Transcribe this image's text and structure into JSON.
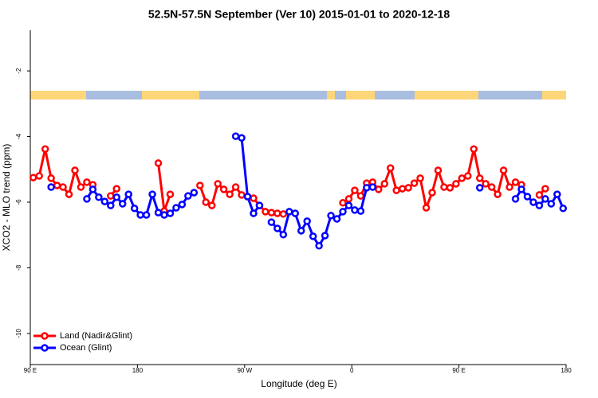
{
  "chart_data": {
    "type": "line",
    "title": "52.5N-57.5N September (Ver 10)   2015-01-01 to 2020-12-18",
    "x_label": "Longitude (deg E)",
    "y_label": "XCO2 - MLO trend (ppm)",
    "xlim": [
      90,
      540
    ],
    "ylim": [
      -10.95,
      -0.76
    ],
    "xticks": [
      {
        "value": 90,
        "label": "90 E"
      },
      180,
      {
        "value": 270,
        "label": "90 W"
      },
      {
        "value": 360,
        "label": "0"
      },
      {
        "value": 450,
        "label": "90 E"
      },
      {
        "value": 540,
        "label": "180"
      }
    ],
    "yticks": [
      -10,
      -8,
      -6,
      -4,
      -2
    ],
    "legend": "bottom-left",
    "x": [
      92.5,
      97.5,
      102.5,
      107.5,
      112.5,
      117.5,
      122.5,
      127.5,
      132.5,
      137.5,
      142.5,
      147.5,
      152.5,
      157.5,
      162.5,
      167.5,
      172.5,
      177.5,
      182.5,
      187.5,
      192.5,
      197.5,
      202.5,
      207.5,
      212.5,
      217.5,
      222.5,
      227.5,
      232.5,
      237.5,
      242.5,
      247.5,
      252.5,
      257.5,
      262.5,
      267.5,
      272.5,
      277.5,
      282.5,
      287.5,
      292.5,
      297.5,
      302.5,
      307.5,
      312.5,
      317.5,
      322.5,
      327.5,
      332.5,
      337.5,
      342.5,
      347.5,
      352.5,
      357.5,
      362.5,
      367.5,
      372.5,
      377.5,
      382.5,
      387.5,
      392.5,
      397.5,
      402.5,
      407.5,
      412.5,
      417.5,
      422.5,
      427.5,
      432.5,
      437.5,
      442.5,
      447.5,
      452.5,
      457.5,
      462.5,
      467.5,
      472.5,
      477.5,
      482.5,
      487.5,
      492.5,
      497.5,
      502.5,
      507.5,
      512.5,
      517.5,
      522.5,
      527.5,
      532.5,
      537.5
    ],
    "series": [
      {
        "name": "Land (Nadir&Glint)",
        "color": "#ff0000",
        "values": [
          -5.25,
          -5.2,
          -4.38,
          -5.27,
          -5.49,
          -5.54,
          -5.76,
          -5.03,
          -5.54,
          -5.39,
          -5.47,
          null,
          null,
          -5.81,
          -5.59,
          null,
          null,
          null,
          null,
          null,
          null,
          -4.81,
          -6.27,
          -5.76,
          null,
          null,
          null,
          null,
          -5.49,
          -6.0,
          -6.1,
          -5.44,
          -5.61,
          -5.76,
          -5.54,
          -5.78,
          -5.83,
          -5.88,
          -6.1,
          -6.29,
          -6.32,
          -6.34,
          -6.36,
          null,
          null,
          null,
          null,
          null,
          null,
          null,
          null,
          null,
          -6.02,
          -5.9,
          -5.64,
          -5.81,
          -5.42,
          -5.39,
          -5.61,
          -5.44,
          -4.96,
          -5.64,
          -5.59,
          -5.56,
          -5.42,
          -5.27,
          -6.17,
          -5.71,
          -5.03,
          -5.54,
          -5.56,
          -5.44,
          -5.27,
          -5.2,
          -4.38,
          -5.27,
          -5.44,
          -5.54,
          -5.76,
          -5.03,
          -5.54,
          -5.39,
          -5.47,
          null,
          null,
          -5.78,
          -5.59,
          null,
          null,
          null
        ]
      },
      {
        "name": "Ocean (Glint)",
        "color": "#0000ff",
        "values": [
          null,
          null,
          null,
          -5.54,
          null,
          null,
          null,
          null,
          null,
          -5.9,
          -5.61,
          -5.85,
          -5.98,
          -6.1,
          -5.85,
          -6.05,
          -5.76,
          -6.19,
          -6.39,
          -6.39,
          -5.76,
          -6.32,
          -6.39,
          -6.34,
          -6.17,
          -6.07,
          -5.81,
          -5.71,
          null,
          null,
          null,
          null,
          null,
          null,
          -3.99,
          -4.04,
          -5.83,
          -6.34,
          -6.1,
          null,
          -6.61,
          -6.8,
          -6.99,
          -6.29,
          -6.34,
          -6.87,
          -6.58,
          -7.04,
          -7.33,
          -7.02,
          -6.41,
          -6.51,
          -6.29,
          -6.1,
          -6.24,
          -6.27,
          -5.56,
          -5.54,
          null,
          null,
          null,
          null,
          null,
          null,
          null,
          null,
          null,
          null,
          null,
          null,
          null,
          null,
          null,
          null,
          null,
          -5.56,
          null,
          null,
          null,
          null,
          null,
          -5.9,
          -5.61,
          -5.83,
          -6.0,
          -6.1,
          -5.9,
          -6.05,
          -5.76,
          -6.19
        ]
      }
    ]
  }
}
